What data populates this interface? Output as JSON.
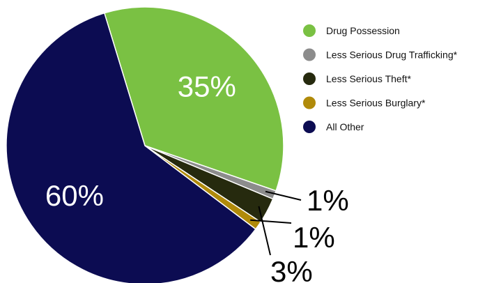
{
  "chart_data": {
    "type": "pie",
    "title": "",
    "slices": [
      {
        "name": "Drug Possession",
        "value": 35,
        "label": "35%",
        "color": "#7ac143"
      },
      {
        "name": "Less Serious Drug Trafficking*",
        "value": 1,
        "label": "1%",
        "color": "#8c8c8c"
      },
      {
        "name": "Less Serious Theft*",
        "value": 3,
        "label": "3%",
        "color": "#262a0e"
      },
      {
        "name": "Less Serious Burglary*",
        "value": 1,
        "label": "1%",
        "color": "#b08a0a"
      },
      {
        "name": "All Other",
        "value": 60,
        "label": "60%",
        "color": "#0c0c52"
      }
    ],
    "legend": {
      "position": "right",
      "entries": [
        "Drug Possession",
        "Less Serious Drug Trafficking*",
        "Less Serious Theft*",
        "Less Serious Burglary*",
        "All Other"
      ]
    }
  }
}
